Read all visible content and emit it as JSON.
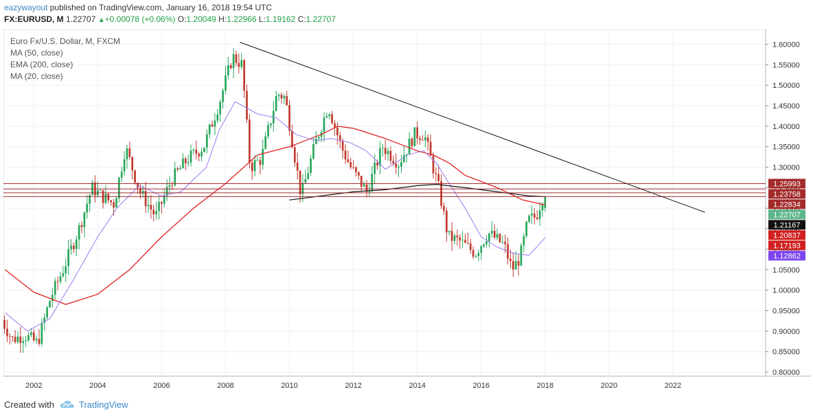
{
  "header": {
    "author": "eazywayout",
    "published_text": "published on TradingView.com, January 16, 2018 19:54 UTC",
    "symbol": "FX:EURUSD, M",
    "last": "1.22707",
    "change": "+0.00078 (+0.06%)",
    "o_label": "O:",
    "o_value": "1.20049",
    "h_label": "H:",
    "h_value": "1.22966",
    "l_label": "L:",
    "l_value": "1.19162",
    "c_label": "C:",
    "c_value": "1.22707"
  },
  "legend": {
    "title": "Euro Fx/U.S. Dollar, M, FXCM",
    "ma50": "MA (50, close)",
    "ema200": "EMA (200, close)",
    "ma20": "MA (20, close)"
  },
  "footer": {
    "created_with": "Created with",
    "brand": "TradingView"
  },
  "colors": {
    "up": "#26a65b",
    "down": "#c0392b",
    "ma50": "#111111",
    "ema200": "#e02020",
    "ma20": "#9b78f0",
    "trendline": "#111111",
    "hline": "#a32b2b",
    "grid": "#eef0f3"
  },
  "chart_data": {
    "type": "candlestick",
    "title": "Euro Fx/U.S. Dollar, M, FXCM",
    "x_range": [
      2001.05,
      2024.9
    ],
    "y_range": [
      0.79,
      1.636
    ],
    "x_ticks": [
      2002,
      2004,
      2006,
      2008,
      2010,
      2012,
      2014,
      2016,
      2018,
      2020,
      2022
    ],
    "y_ticks": [
      "1.60000",
      "1.55000",
      "1.50000",
      "1.45000",
      "1.40000",
      "1.35000",
      "1.30000",
      "1.25000",
      "1.20000",
      "1.15000",
      "1.10000",
      "1.05000",
      "1.00000",
      "0.95000",
      "0.90000",
      "0.85000",
      "0.80000"
    ],
    "close_anchors": [
      [
        2001.0,
        0.94
      ],
      [
        2001.4,
        0.88
      ],
      [
        2001.8,
        0.89
      ],
      [
        2002.2,
        0.87
      ],
      [
        2002.6,
        0.98
      ],
      [
        2003.0,
        1.05
      ],
      [
        2003.5,
        1.15
      ],
      [
        2003.9,
        1.25
      ],
      [
        2004.2,
        1.23
      ],
      [
        2004.6,
        1.21
      ],
      [
        2004.95,
        1.35
      ],
      [
        2005.4,
        1.24
      ],
      [
        2005.9,
        1.18
      ],
      [
        2006.4,
        1.27
      ],
      [
        2006.9,
        1.32
      ],
      [
        2007.4,
        1.35
      ],
      [
        2007.9,
        1.46
      ],
      [
        2008.3,
        1.57
      ],
      [
        2008.6,
        1.55
      ],
      [
        2008.85,
        1.3
      ],
      [
        2009.2,
        1.32
      ],
      [
        2009.7,
        1.48
      ],
      [
        2009.95,
        1.47
      ],
      [
        2010.45,
        1.23
      ],
      [
        2010.9,
        1.36
      ],
      [
        2011.3,
        1.45
      ],
      [
        2011.7,
        1.35
      ],
      [
        2012.0,
        1.3
      ],
      [
        2012.5,
        1.24
      ],
      [
        2013.0,
        1.35
      ],
      [
        2013.5,
        1.31
      ],
      [
        2014.0,
        1.38
      ],
      [
        2014.3,
        1.38
      ],
      [
        2014.75,
        1.25
      ],
      [
        2015.05,
        1.13
      ],
      [
        2015.4,
        1.12
      ],
      [
        2015.9,
        1.09
      ],
      [
        2016.3,
        1.14
      ],
      [
        2016.8,
        1.11
      ],
      [
        2017.05,
        1.05
      ],
      [
        2017.3,
        1.08
      ],
      [
        2017.55,
        1.17
      ],
      [
        2017.8,
        1.18
      ],
      [
        2018.0,
        1.227
      ]
    ],
    "last_bar": {
      "date": "2018-01",
      "open": 1.20049,
      "high": 1.22966,
      "low": 1.19162,
      "close": 1.22707
    },
    "ma50_points": [
      [
        2010.0,
        1.22
      ],
      [
        2011.0,
        1.23
      ],
      [
        2012.0,
        1.24
      ],
      [
        2013.0,
        1.245
      ],
      [
        2014.0,
        1.255
      ],
      [
        2014.6,
        1.258
      ],
      [
        2015.5,
        1.25
      ],
      [
        2016.5,
        1.24
      ],
      [
        2017.5,
        1.23
      ],
      [
        2018.0,
        1.228
      ]
    ],
    "ema200_points": [
      [
        2001.1,
        1.05
      ],
      [
        2002.0,
        0.995
      ],
      [
        2003.0,
        0.965
      ],
      [
        2004.0,
        0.99
      ],
      [
        2005.0,
        1.05
      ],
      [
        2006.0,
        1.13
      ],
      [
        2007.0,
        1.2
      ],
      [
        2008.0,
        1.26
      ],
      [
        2009.0,
        1.33
      ],
      [
        2010.0,
        1.35
      ],
      [
        2011.0,
        1.38
      ],
      [
        2011.5,
        1.4
      ],
      [
        2012.0,
        1.395
      ],
      [
        2013.0,
        1.37
      ],
      [
        2014.0,
        1.34
      ],
      [
        2014.5,
        1.33
      ],
      [
        2015.0,
        1.31
      ],
      [
        2015.5,
        1.28
      ],
      [
        2016.5,
        1.25
      ],
      [
        2017.3,
        1.22
      ],
      [
        2018.0,
        1.208
      ]
    ],
    "ma20_points": [
      [
        2001.1,
        0.945
      ],
      [
        2001.8,
        0.9
      ],
      [
        2002.5,
        0.93
      ],
      [
        2003.2,
        1.02
      ],
      [
        2004.0,
        1.13
      ],
      [
        2004.6,
        1.2
      ],
      [
        2005.3,
        1.255
      ],
      [
        2006.0,
        1.23
      ],
      [
        2006.6,
        1.24
      ],
      [
        2007.4,
        1.3
      ],
      [
        2007.8,
        1.39
      ],
      [
        2008.3,
        1.46
      ],
      [
        2009.0,
        1.43
      ],
      [
        2009.6,
        1.42
      ],
      [
        2010.2,
        1.38
      ],
      [
        2010.8,
        1.365
      ],
      [
        2011.3,
        1.37
      ],
      [
        2011.9,
        1.36
      ],
      [
        2012.4,
        1.34
      ],
      [
        2013.0,
        1.295
      ],
      [
        2013.7,
        1.33
      ],
      [
        2014.2,
        1.34
      ],
      [
        2014.6,
        1.31
      ],
      [
        2015.0,
        1.26
      ],
      [
        2015.5,
        1.2
      ],
      [
        2016.0,
        1.13
      ],
      [
        2016.5,
        1.105
      ],
      [
        2017.0,
        1.09
      ],
      [
        2017.5,
        1.085
      ],
      [
        2018.0,
        1.128
      ]
    ],
    "trendline": [
      [
        2008.45,
        1.605
      ],
      [
        2023.0,
        1.19
      ]
    ],
    "horizontal_lines": [
      1.25993,
      1.24693,
      1.23758,
      1.22834
    ],
    "price_labels": [
      {
        "value": "1.25993",
        "y": 1.25993,
        "bg": "#a32b2b",
        "fg": "#ffffff"
      },
      {
        "value": "1.23758",
        "y": 1.23758,
        "bg": "#a32b2b",
        "fg": "#ffffff"
      },
      {
        "value": "1.22834",
        "y": 1.22834,
        "bg": "#a32b2b",
        "fg": "#ffffff"
      },
      {
        "value": "1.22707",
        "y": 1.22707,
        "bg": "#5fb58a",
        "fg": "#ffffff"
      },
      {
        "value": "1.21167",
        "y": 1.21167,
        "bg": "#111111",
        "fg": "#ffffff"
      },
      {
        "value": "1.20837",
        "y": 1.20837,
        "bg": "#d02020",
        "fg": "#ffffff"
      },
      {
        "value": "1.17193",
        "y": 1.17193,
        "bg": "#d02020",
        "fg": "#ffffff"
      },
      {
        "value": "1.12862",
        "y": 1.12862,
        "bg": "#7b46f0",
        "fg": "#ffffff"
      }
    ]
  }
}
